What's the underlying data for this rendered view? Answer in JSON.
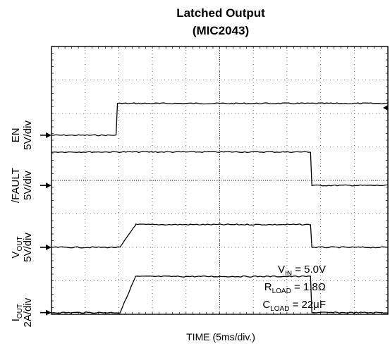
{
  "chart_data": {
    "type": "line",
    "title": "Latched Output",
    "subtitle": "(MIC2043)",
    "xlabel": "TIME (5ms/div.)",
    "x_unit": "ms",
    "x_range": [
      0,
      50
    ],
    "divisions": {
      "x": 10,
      "y": 8
    },
    "grid": true,
    "channels": [
      {
        "name_main": "EN",
        "name_sub": "",
        "scale": "5V/div",
        "ground_div": 5.35,
        "x": [
          0,
          9.6,
          9.8,
          50
        ],
        "y_div": [
          0.0,
          0.0,
          0.95,
          0.95
        ]
      },
      {
        "name_main": "/FAULT",
        "name_sub": "",
        "scale": "5V/div",
        "ground_div": 3.85,
        "x": [
          0,
          38.5,
          38.7,
          50
        ],
        "y_div": [
          1.0,
          1.0,
          0.0,
          0.0
        ]
      },
      {
        "name_main": "V",
        "name_sub": "OUT",
        "scale": "5V/div",
        "ground_div": 2.0,
        "x": [
          0,
          10.2,
          12.5,
          38.5,
          38.7,
          50
        ],
        "y_div": [
          0.0,
          0.0,
          0.68,
          0.68,
          0.0,
          0.0
        ]
      },
      {
        "name_main": "I",
        "name_sub": "OUT",
        "scale": "2A/div",
        "ground_div": 0.05,
        "x": [
          0,
          10.2,
          12.5,
          38.5,
          38.7,
          50
        ],
        "y_div": [
          0.0,
          0.0,
          1.08,
          1.08,
          0.0,
          0.0
        ]
      }
    ],
    "annotations": [
      {
        "main": "V",
        "sub": "IN",
        "rest": " = 5.0V"
      },
      {
        "main": "R",
        "sub": "LOAD",
        "rest": " = 1.8Ω"
      },
      {
        "main": "C",
        "sub": "LOAD",
        "rest": " = 22μF"
      }
    ]
  }
}
